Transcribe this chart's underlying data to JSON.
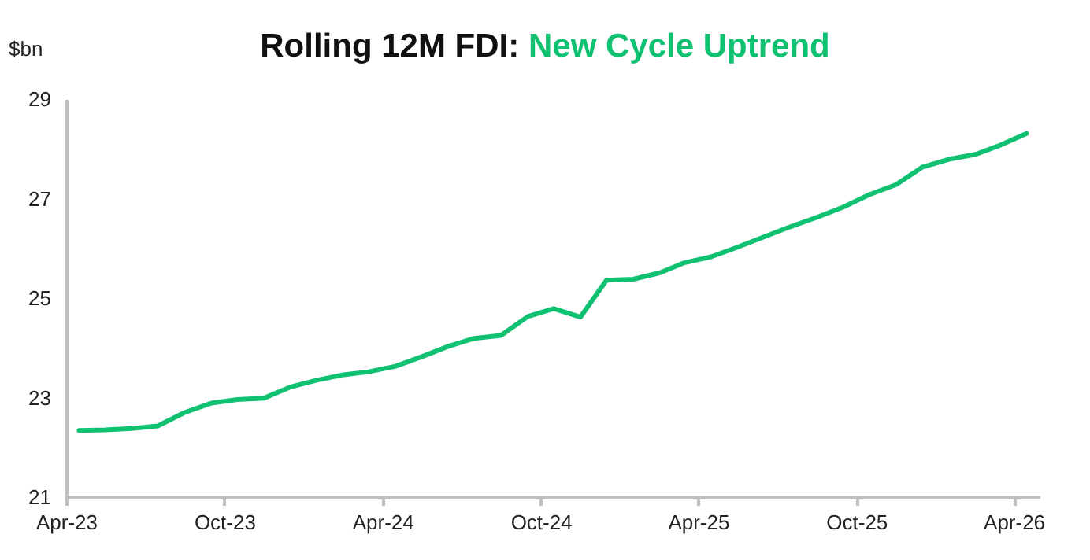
{
  "chart_data": {
    "type": "line",
    "title": "Rolling 12M FDI:",
    "subtitle": "New Cycle Uptrend",
    "ylabel": "$bn",
    "x": [
      "2023-04-16",
      "2023-05-16",
      "2023-06-16",
      "2023-07-16",
      "2023-08-16",
      "2023-09-16",
      "2023-10-16",
      "2023-11-16",
      "2023-12-16",
      "2024-01-16",
      "2024-02-16",
      "2024-03-16",
      "2024-04-16",
      "2024-05-16",
      "2024-06-16",
      "2024-07-16",
      "2024-08-16",
      "2024-09-16",
      "2024-10-16",
      "2024-11-16",
      "2024-12-16",
      "2025-01-16",
      "2025-02-16",
      "2025-03-16",
      "2025-04-16",
      "2025-05-16",
      "2025-06-16",
      "2025-07-16",
      "2025-08-16",
      "2025-09-16",
      "2025-10-16",
      "2025-11-16",
      "2025-12-16",
      "2026-01-16",
      "2026-02-16",
      "2026-03-16",
      "2026-04-16"
    ],
    "series": [
      {
        "color": "#10c172",
        "values": [
          22.34,
          22.35,
          22.38,
          22.43,
          22.7,
          22.89,
          22.96,
          22.99,
          23.21,
          23.35,
          23.46,
          23.52,
          23.63,
          23.82,
          24.03,
          24.19,
          24.25,
          24.63,
          24.79,
          24.62,
          25.36,
          25.38,
          25.51,
          25.71,
          25.83,
          26.02,
          26.23,
          26.43,
          26.62,
          26.83,
          27.08,
          27.28,
          27.63,
          27.79,
          27.89,
          28.07,
          28.31
        ]
      }
    ],
    "xlim": [
      "2023-04-01",
      "2026-05-01"
    ],
    "xticks": [
      {
        "value": "2023-04-01",
        "label": "Apr-23"
      },
      {
        "value": "2023-10-01",
        "label": "Oct-23"
      },
      {
        "value": "2024-04-01",
        "label": "Apr-24"
      },
      {
        "value": "2024-10-01",
        "label": "Oct-24"
      },
      {
        "value": "2025-04-01",
        "label": "Apr-25"
      },
      {
        "value": "2025-10-01",
        "label": "Oct-25"
      },
      {
        "value": "2026-04-01",
        "label": "Apr-26"
      }
    ],
    "ylim": [
      21,
      29
    ],
    "yticks": [
      21,
      23,
      25,
      27,
      29
    ],
    "grid": false,
    "marker": "none",
    "line_style": "solid"
  }
}
